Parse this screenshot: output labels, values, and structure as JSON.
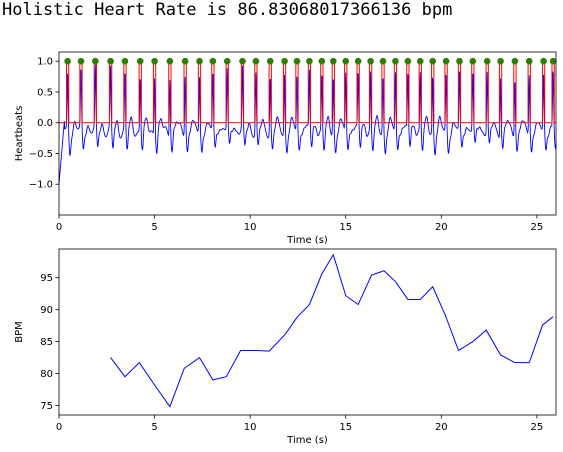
{
  "title": "Holistic Heart Rate is 86.83068017366136 bpm",
  "colors": {
    "signal": "#0000ff",
    "peak_line": "#ff0000",
    "peak_marker": "#2e7d00",
    "bpm_line": "#0000ff",
    "axis": "#000000"
  },
  "chart_data": [
    {
      "type": "line",
      "title": "",
      "xlabel": "Time (s)",
      "ylabel": "Heartbeats",
      "xlim": [
        0,
        26
      ],
      "ylim": [
        -1.5,
        1.15
      ],
      "xticks": [
        0,
        5,
        10,
        15,
        20,
        25
      ],
      "xtick_labels": [
        "0",
        "5",
        "10",
        "15",
        "20",
        "25"
      ],
      "yticks": [
        1.0,
        0.5,
        0.0,
        -0.5,
        -1.0
      ],
      "ytick_labels": [
        "1.0",
        "0.5",
        "0.0",
        "−0.5",
        "−1.0"
      ],
      "grid": false,
      "peak_times": [
        0.45,
        1.15,
        1.9,
        2.7,
        3.45,
        4.25,
        5.0,
        5.8,
        6.6,
        7.35,
        8.05,
        8.8,
        9.6,
        10.3,
        11.05,
        11.8,
        12.45,
        13.1,
        13.75,
        14.35,
        15.0,
        15.65,
        16.3,
        16.95,
        17.6,
        18.25,
        18.9,
        19.55,
        20.25,
        20.95,
        21.65,
        22.4,
        23.1,
        23.85,
        24.6,
        25.35,
        25.85
      ],
      "series": [
        {
          "values_note": "",
          "baseline": -0.15,
          "trough": -0.45,
          "start": -1.0
        }
      ]
    },
    {
      "type": "line",
      "title": "",
      "xlabel": "Time (s)",
      "ylabel": "BPM",
      "xlim": [
        0,
        26
      ],
      "ylim": [
        73.5,
        99.5
      ],
      "xticks": [
        0,
        5,
        10,
        15,
        20,
        25
      ],
      "xtick_labels": [
        "0",
        "5",
        "10",
        "15",
        "20",
        "25"
      ],
      "yticks": [
        75,
        80,
        85,
        90,
        95
      ],
      "ytick_labels": [
        "75",
        "80",
        "85",
        "90",
        "95"
      ],
      "grid": false,
      "x": [
        2.7,
        3.45,
        4.2,
        5.0,
        5.8,
        6.55,
        7.35,
        8.05,
        8.75,
        9.5,
        10.35,
        11.0,
        11.85,
        12.45,
        13.1,
        13.75,
        14.35,
        15.0,
        15.65,
        16.35,
        17.0,
        17.6,
        18.25,
        18.9,
        19.55,
        20.2,
        20.9,
        21.65,
        22.35,
        23.1,
        23.85,
        24.6,
        25.3,
        25.85
      ],
      "values": [
        82.5,
        79.5,
        81.7,
        78.2,
        74.8,
        80.8,
        82.5,
        79.0,
        79.5,
        83.6,
        83.6,
        83.5,
        86.2,
        88.8,
        90.8,
        95.6,
        98.6,
        92.2,
        90.8,
        95.4,
        96.1,
        94.4,
        91.6,
        91.6,
        93.6,
        89.2,
        83.6,
        85.0,
        86.8,
        82.9,
        81.7,
        81.7,
        87.6,
        88.9
      ]
    }
  ]
}
